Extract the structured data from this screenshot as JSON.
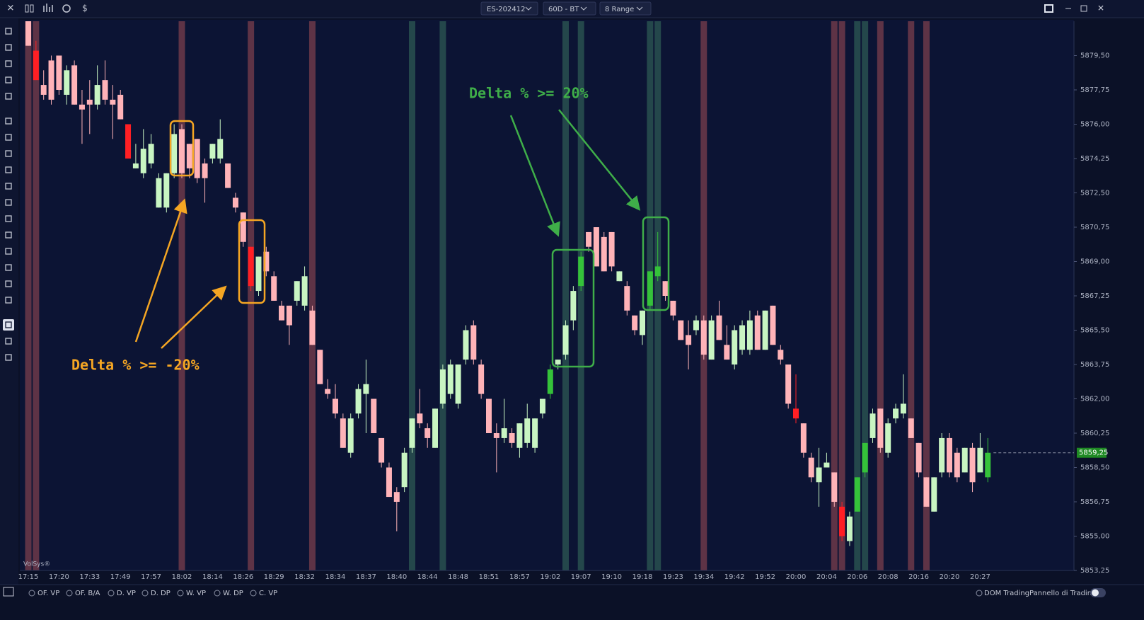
{
  "toolbar": {
    "instrument": "ES-202412",
    "timeframe": "60D - BT",
    "bar_type": "8 Range"
  },
  "watermark": "VolSys®",
  "bottom_bar": {
    "studies": [
      "OF. VP",
      "OF. B/A",
      "D. VP",
      "D. DP",
      "W. VP",
      "W. DP",
      "C. VP"
    ],
    "dom": "DOM Trading",
    "panel": "Pannello di Trading"
  },
  "chart_data": {
    "type": "candlestick",
    "categories": [
      "17:15",
      null,
      null,
      null,
      "17:20",
      null,
      null,
      null,
      "17:33",
      null,
      null,
      null,
      "17:49",
      null,
      null,
      null,
      "17:57",
      null,
      null,
      null,
      "18:02",
      null,
      null,
      null,
      "18:14",
      null,
      null,
      null,
      "18:26",
      null,
      null,
      null,
      "18:29",
      null,
      null,
      null,
      "18:32",
      null,
      null,
      null,
      "18:34",
      null,
      null,
      null,
      "18:37",
      null,
      null,
      null,
      "18:40",
      null,
      null,
      null,
      "18:44",
      null,
      null,
      null,
      "18:48",
      null,
      null,
      null,
      "18:51",
      null,
      null,
      null,
      "18:57",
      null,
      null,
      null,
      "19:02",
      null,
      null,
      null,
      "19:07",
      null,
      null,
      null,
      "19:10",
      null,
      null,
      null,
      "19:18",
      null,
      null,
      null,
      "19:23",
      null,
      null,
      null,
      "19:34",
      null,
      null,
      null,
      "19:42",
      null,
      null,
      null,
      "19:52",
      null,
      null,
      null,
      "20:00",
      null,
      null,
      null,
      "20:04",
      null,
      null,
      null,
      "20:06",
      null,
      null,
      null,
      "20:08",
      null,
      null,
      null,
      "20:16",
      null,
      null,
      null,
      "20:20",
      null,
      null,
      null,
      "20:27",
      null
    ],
    "open": [
      5881.25,
      5879.75,
      5878,
      5879.25,
      5879.5,
      5877.5,
      5879,
      5877,
      5877.25,
      5877,
      5878.25,
      5877.25,
      5877.5,
      5876,
      5873.75,
      5873.5,
      5874,
      5871.75,
      5871.75,
      5873.5,
      5875.75,
      5875,
      5875.25,
      5874,
      5874.25,
      5874.25,
      5874,
      5872.25,
      5871.5,
      5869.75,
      5867.5,
      5869.5,
      5868.25,
      5866.75,
      5866.75,
      5867,
      5866.75,
      5866.5,
      5864.5,
      5862.5,
      5862,
      5861,
      5859.25,
      5861.25,
      5862.25,
      5862,
      5860,
      5858.5,
      5857.25,
      5857.5,
      5859.5,
      5861.25,
      5860.5,
      5859.5,
      5861.75,
      5862.25,
      5861.75,
      5864,
      5865.75,
      5863.75,
      5862,
      5860.25,
      5860,
      5860.25,
      5859.5,
      5859.75,
      5859.5,
      5861.25,
      5862.25,
      5863.75,
      5864.25,
      5866,
      5867.75,
      5870.5,
      5870.75,
      5870.25,
      5870.5,
      5868,
      5867.75,
      5866.25,
      5865.25,
      5866.75,
      5868.25,
      5868,
      5867,
      5866,
      5865.25,
      5865.5,
      5866,
      5864,
      5866.25,
      5864.75,
      5863.75,
      5864.5,
      5864.5,
      5866.25,
      5864.5,
      5866.75,
      5864.5,
      5863.75,
      5861.5,
      5860.75,
      5859,
      5857.75,
      5858.5,
      5858.25,
      5856.5,
      5854.75,
      5856.25,
      5858.25,
      5860,
      5861.5,
      5859.25,
      5861,
      5861.25,
      5861,
      5859.75,
      5858,
      5856.25,
      5858.25,
      5860,
      5859.25,
      5858.25,
      5859.5,
      5858.25,
      5858
    ],
    "high": [
      5881.25,
      5880.25,
      5878.75,
      5879.5,
      5879.5,
      5879,
      5879.25,
      5877.75,
      5878.25,
      5879,
      5879.25,
      5878,
      5877.75,
      5876,
      5875,
      5875.75,
      5875.5,
      5873.5,
      5873.5,
      5876,
      5876,
      5875,
      5875.25,
      5874.25,
      5875,
      5876.25,
      5874,
      5872.5,
      5871.5,
      5869.75,
      5869.25,
      5869.75,
      5868.5,
      5867,
      5866.75,
      5868,
      5868.75,
      5866.75,
      5864.5,
      5863,
      5862.75,
      5861.25,
      5861.25,
      5862.75,
      5864,
      5862,
      5860,
      5858.75,
      5857.5,
      5859.5,
      5861,
      5862.5,
      5860.75,
      5861.5,
      5863.75,
      5864,
      5863.75,
      5865.75,
      5866,
      5864,
      5862,
      5860.75,
      5862,
      5860.5,
      5860.75,
      5861.75,
      5861,
      5862,
      5863.75,
      5864,
      5866,
      5867.75,
      5869.5,
      5870.5,
      5870.75,
      5870.5,
      5870.5,
      5868.5,
      5868,
      5866.25,
      5866.5,
      5868.5,
      5870.5,
      5868,
      5867,
      5866,
      5866,
      5866.25,
      5866.25,
      5866.25,
      5867,
      5865.75,
      5865.75,
      5866,
      5866.5,
      5866.5,
      5866.5,
      5866.75,
      5864.75,
      5863.75,
      5863.25,
      5860.75,
      5859.25,
      5859.5,
      5859.25,
      5858.25,
      5856.75,
      5856.25,
      5858,
      5859.75,
      5861.5,
      5861.5,
      5861,
      5861.75,
      5863.25,
      5861,
      5859.75,
      5858,
      5858,
      5860.25,
      5860.25,
      5859.5,
      5859.5,
      5859.75,
      5860.25,
      5860
    ],
    "low": [
      5880,
      5878.25,
      5877.25,
      5877,
      5877.5,
      5877,
      5877,
      5875,
      5875.5,
      5876.75,
      5877,
      5875.25,
      5876.25,
      5874.25,
      5873.75,
      5873.25,
      5873.75,
      5871.75,
      5871.5,
      5873.25,
      5873.25,
      5873.25,
      5873,
      5872,
      5874,
      5874,
      5872.75,
      5871.5,
      5869.75,
      5867.5,
      5867.25,
      5868.25,
      5867,
      5866,
      5864.75,
      5866.75,
      5866.5,
      5864.75,
      5862.75,
      5862,
      5861,
      5859.5,
      5859,
      5861,
      5860.25,
      5860.25,
      5858.5,
      5857,
      5855.25,
      5857.25,
      5859.25,
      5860.5,
      5859.5,
      5859.5,
      5861.5,
      5862,
      5861.5,
      5863.75,
      5863.75,
      5862,
      5860.25,
      5858.25,
      5859.75,
      5859.5,
      5859,
      5859.5,
      5859.25,
      5861,
      5862,
      5863.5,
      5864,
      5865.5,
      5867.5,
      5869.5,
      5868.75,
      5868.5,
      5868.5,
      5868,
      5866.25,
      5865.25,
      5864.75,
      5866.5,
      5868,
      5867,
      5866,
      5865,
      5863.5,
      5865.25,
      5864,
      5864,
      5865,
      5864,
      5863.5,
      5864.25,
      5864.25,
      5864.5,
      5864.5,
      5864.75,
      5863.75,
      5861.5,
      5860.75,
      5859,
      5857.75,
      5856.5,
      5858.5,
      5856.5,
      5854.75,
      5854.5,
      5856.25,
      5858,
      5859.75,
      5859.25,
      5859,
      5860.75,
      5861,
      5860,
      5858,
      5856.5,
      5856.25,
      5858,
      5858,
      5857.75,
      5858.25,
      5857.25,
      5858.25,
      5857.75
    ],
    "close": [
      5880,
      5878.25,
      5877.5,
      5877.25,
      5877.75,
      5878.75,
      5877,
      5876.75,
      5877,
      5878,
      5877.25,
      5877,
      5876.25,
      5874.25,
      5874,
      5874.75,
      5875,
      5873.25,
      5873.5,
      5875.5,
      5873.5,
      5873.75,
      5873.25,
      5873.25,
      5875,
      5875.25,
      5872.75,
      5871.75,
      5870,
      5867.75,
      5869.25,
      5868.5,
      5867,
      5866,
      5865.75,
      5868,
      5868.25,
      5864.75,
      5862.75,
      5862.25,
      5861.25,
      5859.5,
      5861,
      5862.5,
      5862.75,
      5860.25,
      5858.75,
      5857,
      5856.75,
      5859.25,
      5861,
      5860.75,
      5860,
      5861.5,
      5863.5,
      5863.75,
      5863.75,
      5865.5,
      5864,
      5862.25,
      5860.25,
      5860,
      5860.5,
      5859.75,
      5860.75,
      5861,
      5861,
      5862,
      5863.5,
      5864,
      5865.75,
      5867.5,
      5869.25,
      5869.75,
      5868.75,
      5868.5,
      5868.75,
      5868.5,
      5866.5,
      5865.5,
      5866.5,
      5868.5,
      5868.75,
      5867.25,
      5866.25,
      5865,
      5864.75,
      5866,
      5864.25,
      5866,
      5865,
      5864,
      5865.5,
      5865.75,
      5866,
      5864.5,
      5866.5,
      5864.75,
      5864,
      5861.75,
      5861,
      5859.25,
      5858,
      5858.5,
      5858.75,
      5856.75,
      5855,
      5856,
      5858,
      5859.75,
      5861.25,
      5859.5,
      5860.75,
      5861.5,
      5861.75,
      5860,
      5858.25,
      5856.5,
      5858,
      5860,
      5858.25,
      5858,
      5859.5,
      5857.75,
      5859.5,
      5859.25
    ],
    "ylim": [
      5853.25,
      5881.25
    ],
    "yticks": [
      {
        "value": 5879.5,
        "label": "5879,50"
      },
      {
        "value": 5877.75,
        "label": "5877,75"
      },
      {
        "value": 5876,
        "label": "5876,00"
      },
      {
        "value": 5874.25,
        "label": "5874,25"
      },
      {
        "value": 5872.5,
        "label": "5872,50"
      },
      {
        "value": 5870.75,
        "label": "5870,75"
      },
      {
        "value": 5869,
        "label": "5869,00"
      },
      {
        "value": 5867.25,
        "label": "5867,25"
      },
      {
        "value": 5865.5,
        "label": "5865,50"
      },
      {
        "value": 5863.75,
        "label": "5863,75"
      },
      {
        "value": 5862,
        "label": "5862,00"
      },
      {
        "value": 5860.25,
        "label": "5860,25"
      },
      {
        "value": 5858.5,
        "label": "5858,50"
      },
      {
        "value": 5856.75,
        "label": "5856,75"
      },
      {
        "value": 5855,
        "label": "5855,00"
      },
      {
        "value": 5853.25,
        "label": "5853,25"
      }
    ],
    "colors": {
      "up": "#c8f5c2",
      "down": "#ffb3b8",
      "strong_up": "#35c23a",
      "strong_down": "#ff1f24"
    },
    "strong_down": [
      1,
      13,
      29,
      100,
      106
    ],
    "strong_up": [
      68,
      72,
      81,
      82,
      108,
      109,
      125
    ],
    "signal_bands": {
      "sell": {
        "color": "#5e3346",
        "bars": [
          0,
          1,
          20,
          29,
          37,
          88,
          105,
          106,
          111,
          115,
          117
        ]
      },
      "buy": {
        "color": "#24474b",
        "bars": [
          50,
          54,
          70,
          72,
          81,
          82,
          108,
          109
        ]
      }
    },
    "last_price": {
      "value": 5859.25,
      "label": "5859,25"
    },
    "annotations": [
      {
        "text": "Delta % >= 20%",
        "color": "#3fae49"
      },
      {
        "text": "Delta % >= -20%",
        "color": "#f5a623"
      }
    ]
  }
}
